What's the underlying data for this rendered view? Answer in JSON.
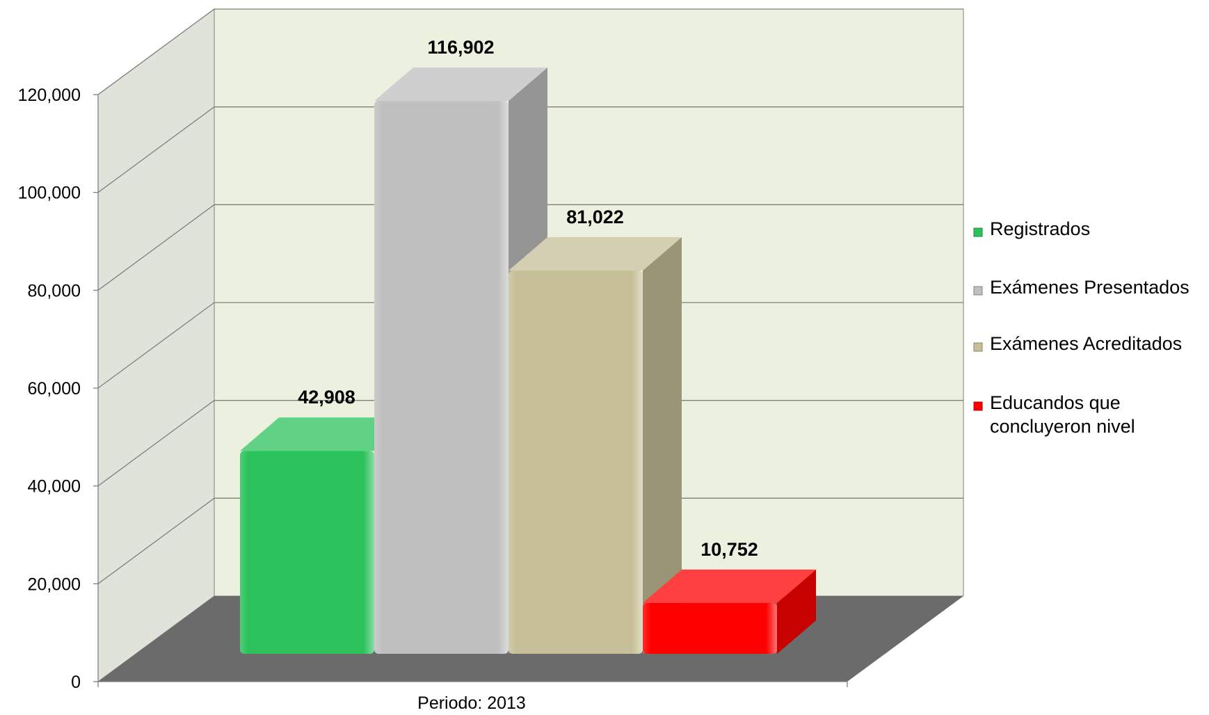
{
  "chart_data": {
    "type": "bar",
    "categories": [
      "Periodo: 2013"
    ],
    "series": [
      {
        "name": "Registrados",
        "value": 42908,
        "label": "42,908",
        "color": "#2bc25c",
        "legend_lines": [
          "Registrados"
        ]
      },
      {
        "name": "Exámenes Presentados",
        "value": 116902,
        "label": "116,902",
        "color": "#bfbfbf",
        "legend_lines": [
          "Exámenes Presentados"
        ]
      },
      {
        "name": "Exámenes Acreditados",
        "value": 81022,
        "label": "81,022",
        "color": "#c6bf98",
        "legend_lines": [
          "Exámenes Acreditados"
        ]
      },
      {
        "name": "Educandos que concluyeron nivel",
        "value": 10752,
        "label": "10,752",
        "color": "#ff0000",
        "legend_lines": [
          "Educandos que",
          "concluyeron nivel"
        ]
      }
    ],
    "yticks": [
      "0",
      "20,000",
      "40,000",
      "60,000",
      "80,000",
      "100,000",
      "120,000"
    ],
    "ylim": [
      0,
      120000
    ],
    "grid": true,
    "legend_position": "right",
    "colors": {
      "back_wall": "#ebf1de",
      "side_wall": "#e0e3d9",
      "floor": "#6b6b6b",
      "gridline": "#808080"
    }
  }
}
